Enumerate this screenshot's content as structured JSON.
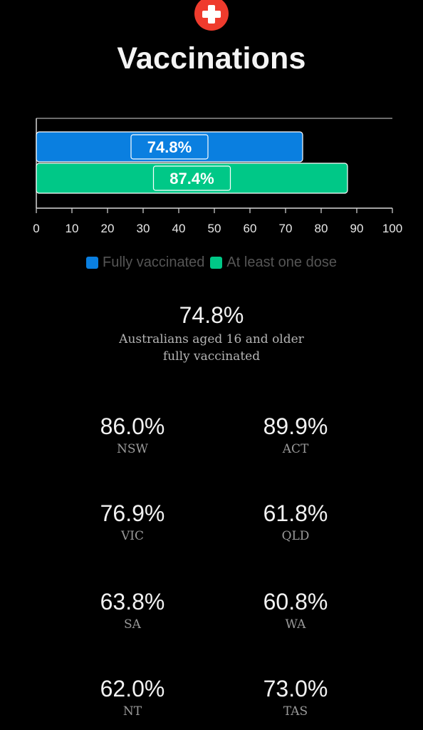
{
  "header": {
    "icon": "red-cross-icon",
    "icon_color": "#ef3b2d",
    "title": "Vaccinations"
  },
  "chart_data": {
    "type": "bar",
    "orientation": "horizontal",
    "categories": [
      ""
    ],
    "series": [
      {
        "name": "Fully vaccinated",
        "values": [
          74.8
        ],
        "color": "#0a7fe0",
        "label": "74.8%"
      },
      {
        "name": "At least one dose",
        "values": [
          87.4
        ],
        "color": "#00c887",
        "label": "87.4%"
      }
    ],
    "xlim": [
      0,
      100
    ],
    "x_ticks": [
      "0",
      "10",
      "20",
      "30",
      "40",
      "50",
      "60",
      "70",
      "80",
      "90",
      "100"
    ],
    "grid": false,
    "legend_position": "bottom"
  },
  "summary": {
    "value": "74.8%",
    "description_line1": "Australians aged 16 and older",
    "description_line2": "fully vaccinated"
  },
  "states": [
    {
      "value": "86.0%",
      "label": "NSW"
    },
    {
      "value": "89.9%",
      "label": "ACT"
    },
    {
      "value": "76.9%",
      "label": "VIC"
    },
    {
      "value": "61.8%",
      "label": "QLD"
    },
    {
      "value": "63.8%",
      "label": "SA"
    },
    {
      "value": "60.8%",
      "label": "WA"
    },
    {
      "value": "62.0%",
      "label": "NT"
    },
    {
      "value": "73.0%",
      "label": "TAS"
    }
  ]
}
